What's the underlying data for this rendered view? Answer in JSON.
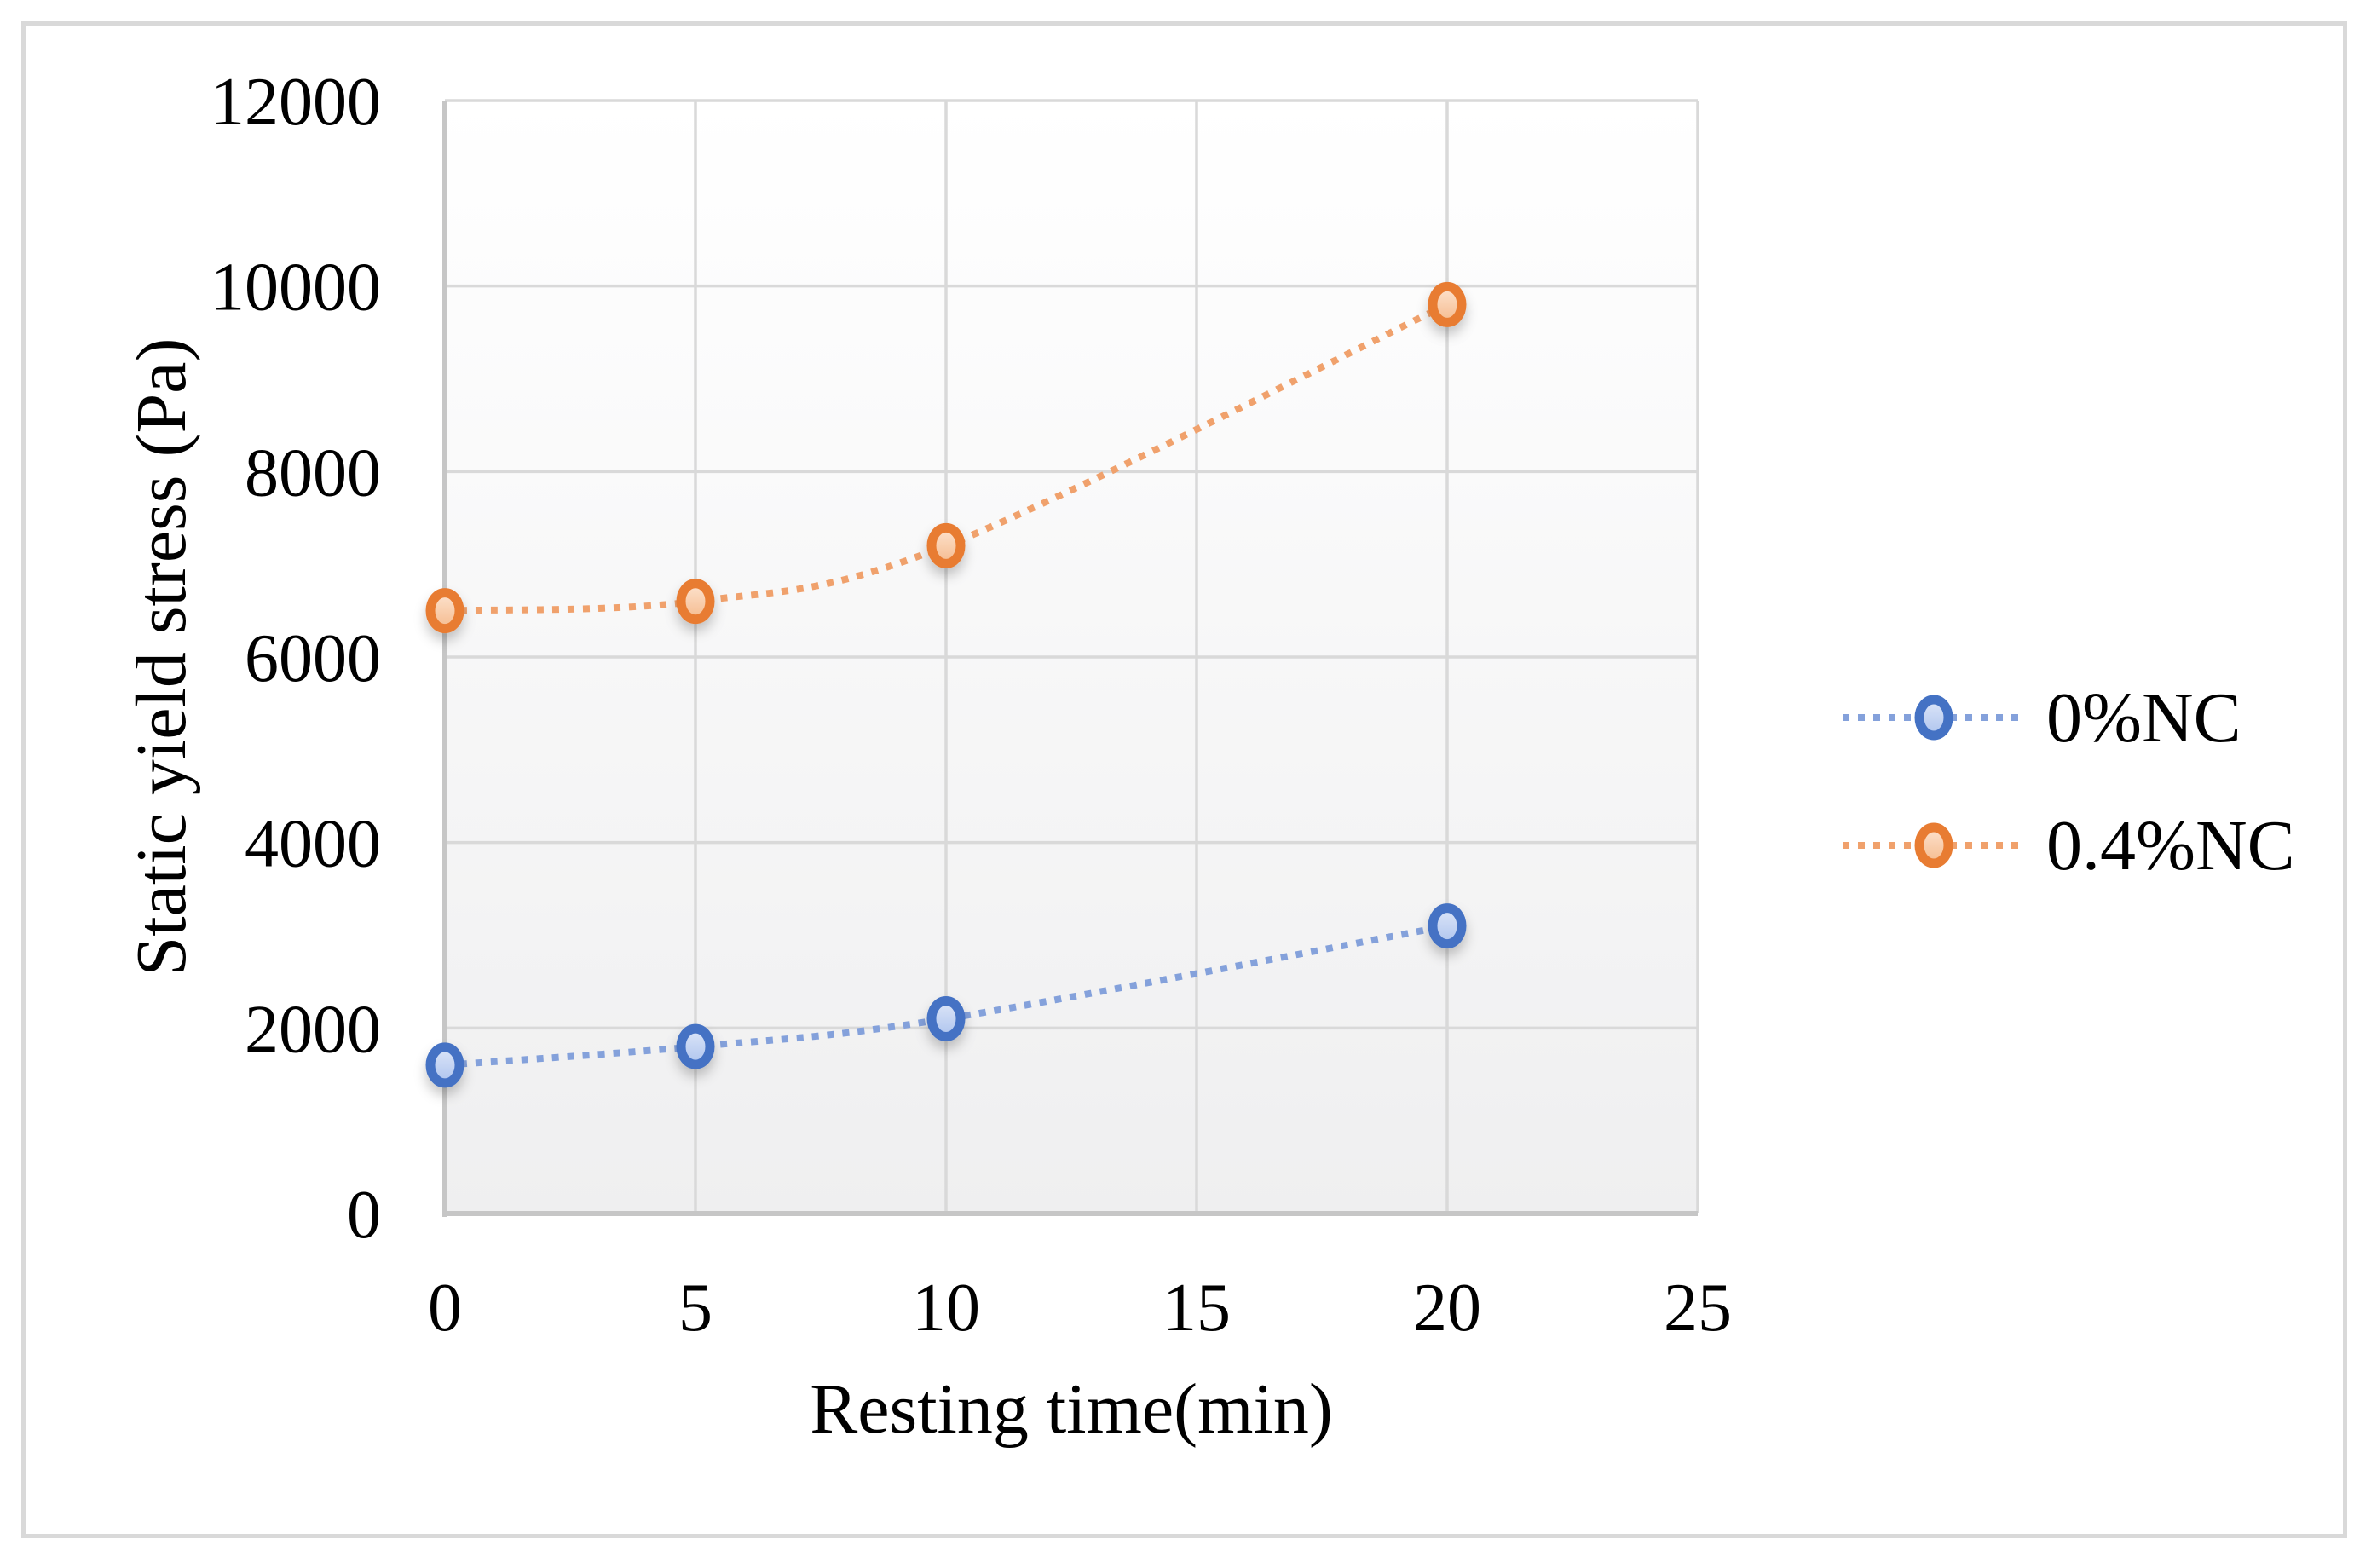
{
  "chart_data": {
    "type": "line",
    "title": "",
    "xlabel": "Resting time(min)",
    "ylabel": "Static yield stress (Pa)",
    "x": [
      0,
      5,
      10,
      20
    ],
    "series": [
      {
        "name": "0%NC",
        "values": [
          1600,
          1800,
          2100,
          3100
        ],
        "marker_border": "#4472C4",
        "marker_fill_light": "#DDE6F8",
        "marker_fill_dark": "#AEC4EE",
        "dot_color": "#84A1DB"
      },
      {
        "name": "0.4%NC",
        "values": [
          6500,
          6600,
          7200,
          9800
        ],
        "marker_border": "#E87C32",
        "marker_fill_light": "#FDE3CF",
        "marker_fill_dark": "#F5BB8E",
        "dot_color": "#F0A16C"
      }
    ],
    "xlim": [
      0,
      25
    ],
    "ylim": [
      0,
      12000
    ],
    "x_ticks": [
      0,
      5,
      10,
      15,
      20,
      25
    ],
    "y_ticks": [
      0,
      2000,
      4000,
      6000,
      8000,
      10000,
      12000
    ],
    "grid": true,
    "line_style": "dotted",
    "smooth": true,
    "legend_position": "right"
  },
  "styles": {
    "frame_border": "#D9D9D9",
    "gridline": "#D9D9D9",
    "axis_line": "#C6C6C6",
    "tick_text": "#000000",
    "plot_bg_top": "#FFFFFF",
    "plot_bg_bottom": "#EFEFF0"
  }
}
